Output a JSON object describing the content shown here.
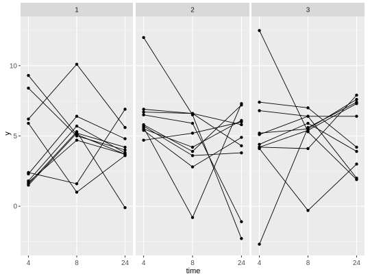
{
  "chart_data": {
    "type": "line",
    "facets": [
      "1",
      "2",
      "3"
    ],
    "xlabel": "time",
    "ylabel": "y",
    "x_ticks": [
      "4",
      "8",
      "24"
    ],
    "y_ticks": [
      0,
      5,
      10
    ],
    "ylim": [
      -3.5,
      13.5
    ],
    "grid": true,
    "colors": {
      "panel_bg": "#ebebeb",
      "strip_bg": "#d9d9d9",
      "major_grid": "#ffffff",
      "minor_grid": "#f5f5f5",
      "line": "#000000",
      "point": "#000000",
      "tick": "#333333"
    },
    "panels": [
      {
        "facet": "1",
        "series": [
          {
            "values": [
              9.3,
              5.1,
              3.7
            ]
          },
          {
            "values": [
              8.4,
              5.0,
              4.0
            ]
          },
          {
            "values": [
              6.2,
              10.1,
              5.6
            ]
          },
          {
            "values": [
              5.9,
              1.0,
              3.6
            ]
          },
          {
            "values": [
              2.4,
              1.6,
              6.9
            ]
          },
          {
            "values": [
              2.3,
              6.4,
              4.8
            ]
          },
          {
            "values": [
              1.8,
              5.7,
              3.8
            ]
          },
          {
            "values": [
              1.7,
              4.7,
              3.7
            ]
          },
          {
            "values": [
              1.6,
              5.3,
              -0.1
            ]
          },
          {
            "values": [
              1.5,
              5.2,
              4.2
            ]
          }
        ]
      },
      {
        "facet": "2",
        "series": [
          {
            "values": [
              12.0,
              6.5,
              -2.3
            ]
          },
          {
            "values": [
              6.9,
              6.6,
              5.8
            ]
          },
          {
            "values": [
              6.7,
              6.6,
              4.3
            ]
          },
          {
            "values": [
              6.5,
              5.9,
              -1.1
            ]
          },
          {
            "values": [
              5.8,
              3.9,
              7.2
            ]
          },
          {
            "values": [
              5.6,
              -0.8,
              7.3
            ]
          },
          {
            "values": [
              5.5,
              4.2,
              6.1
            ]
          },
          {
            "values": [
              5.4,
              2.8,
              4.9
            ]
          },
          {
            "values": [
              4.7,
              5.2,
              6.0
            ]
          },
          {
            "values": [
              5.7,
              3.6,
              3.8
            ]
          }
        ]
      },
      {
        "facet": "3",
        "series": [
          {
            "values": [
              12.5,
              5.3,
              1.9
            ]
          },
          {
            "values": [
              7.4,
              7.0,
              4.2
            ]
          },
          {
            "values": [
              6.8,
              6.4,
              2.0
            ]
          },
          {
            "values": [
              5.2,
              5.5,
              7.6
            ]
          },
          {
            "values": [
              5.1,
              6.4,
              6.4
            ]
          },
          {
            "values": [
              4.4,
              5.9,
              3.9
            ]
          },
          {
            "values": [
              4.2,
              4.1,
              7.9
            ]
          },
          {
            "values": [
              4.1,
              -0.3,
              3.0
            ]
          },
          {
            "values": [
              -2.7,
              5.6,
              7.4
            ]
          },
          {
            "values": [
              4.2,
              5.4,
              7.3
            ]
          }
        ]
      }
    ]
  }
}
